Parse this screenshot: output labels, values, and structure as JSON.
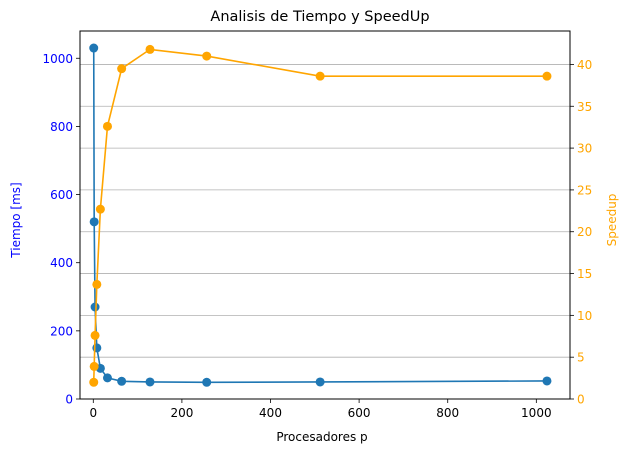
{
  "chart_data": {
    "type": "line",
    "title": "Analisis de Tiempo y SpeedUp",
    "xlabel": "Procesadores p",
    "ylabel_left": "Tiempo [ms]",
    "ylabel_right": "Speedup",
    "xlim": [
      -30,
      1076
    ],
    "ylim_left": [
      0,
      1080
    ],
    "ylim_right": [
      0,
      44
    ],
    "x_ticks": [
      0,
      200,
      400,
      600,
      800,
      1000
    ],
    "y_left_ticks": [
      0,
      200,
      400,
      600,
      800,
      1000
    ],
    "y_right_ticks": [
      0,
      5,
      10,
      15,
      20,
      25,
      30,
      35,
      40
    ],
    "grid": "horizontal lines at right-axis ticks",
    "legend": "none",
    "colors": {
      "tiempo": "#1f77b4",
      "speedup": "#ffa500",
      "left_axis_text": "#0000ff",
      "right_axis_text": "#ffa500",
      "grid": "#b0b0b0"
    },
    "series": [
      {
        "axis": "left",
        "color": "#1f77b4",
        "x": [
          1,
          2,
          4,
          8,
          16,
          32,
          64,
          128,
          256,
          512,
          1024
        ],
        "y": [
          1030,
          520,
          270,
          150,
          90,
          62,
          52,
          50,
          49,
          50,
          53
        ]
      },
      {
        "axis": "right",
        "color": "#ffa500",
        "x": [
          1,
          2,
          4,
          8,
          16,
          32,
          64,
          128,
          256,
          512,
          1024
        ],
        "y": [
          2.0,
          3.9,
          7.6,
          13.7,
          22.7,
          32.6,
          39.5,
          41.8,
          41.0,
          38.6,
          38.6
        ]
      }
    ]
  }
}
